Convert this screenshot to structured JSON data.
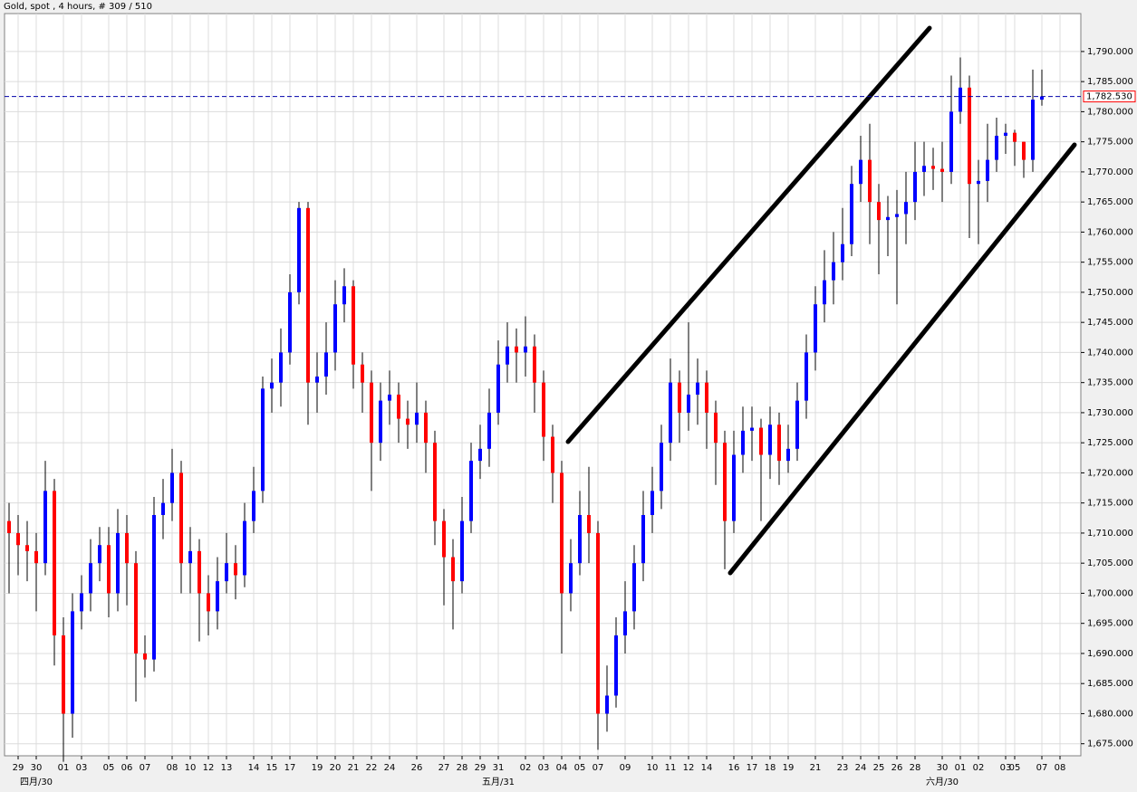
{
  "chart_data": {
    "type": "candlestick",
    "title": "Gold, spot , 4 hours, # 309 / 510",
    "up_color": "#0000ff",
    "down_color": "#ff0000",
    "wick_color": "#000000",
    "grid": true,
    "categories": [
      null,
      "29",
      null,
      "30",
      null,
      null,
      "01",
      null,
      "03",
      null,
      null,
      "05",
      null,
      "06",
      null,
      "07",
      null,
      null,
      "08",
      null,
      "10",
      null,
      "12",
      null,
      "13",
      null,
      null,
      "14",
      null,
      "15",
      null,
      "17",
      null,
      null,
      "19",
      null,
      "20",
      null,
      "21",
      null,
      "22",
      null,
      "24",
      null,
      null,
      "26",
      null,
      null,
      "27",
      null,
      "28",
      null,
      "29",
      null,
      "31",
      null,
      null,
      "02",
      null,
      "03",
      null,
      "04",
      null,
      "05",
      null,
      "07",
      null,
      null,
      "09",
      null,
      null,
      "10",
      null,
      "11",
      null,
      "12",
      null,
      "14",
      null,
      null,
      "16",
      null,
      "17",
      null,
      "18",
      null,
      "19",
      null,
      null,
      "21",
      null,
      null,
      "23",
      null,
      "24",
      null,
      "25",
      null,
      "26",
      null,
      "28",
      null,
      null,
      "30",
      null,
      "01",
      null,
      "02",
      null,
      null,
      "03",
      "05",
      null,
      null,
      "07",
      null,
      "08"
    ],
    "month_labels": [
      {
        "label": "四月/30",
        "index": 3
      },
      {
        "label": "五月/31",
        "index": 54
      },
      {
        "label": "六月/30",
        "index": 103
      }
    ],
    "open": [
      1712,
      1710,
      1708,
      1707,
      1705,
      1717,
      1693,
      1680,
      1697,
      1700,
      1705,
      1708,
      1700,
      1710,
      1705,
      1690,
      1689,
      1713,
      1715,
      1720,
      1705,
      1707,
      1700,
      1697,
      1702,
      1705,
      1703,
      1712,
      1717,
      1734,
      1735,
      1740,
      1750,
      1764,
      1735,
      1736,
      1740,
      1748,
      1751,
      1738,
      1735,
      1725,
      1732,
      1733,
      1729,
      1728,
      1730,
      1725,
      1712,
      1706,
      1702,
      1712,
      1722,
      1724,
      1730,
      1738,
      1741,
      1740,
      1741,
      1735,
      1726,
      1720,
      1700,
      1705,
      1713,
      1710,
      1680,
      1683,
      1693,
      1697,
      1705,
      1713,
      1717,
      1725,
      1735,
      1730,
      1733,
      1735,
      1730,
      1725,
      1712,
      1723,
      1727,
      1727.5,
      1723,
      1728,
      1722,
      1724,
      1732,
      1740,
      1748,
      1752,
      1755,
      1758,
      1768,
      1772,
      1765,
      1762,
      1762.5,
      1763,
      1765,
      1770,
      1771,
      1770.5,
      1770,
      1780,
      1784,
      1768,
      1768.5,
      1772,
      1776,
      1776.5,
      1775,
      1772,
      1782,
      null,
      null
    ],
    "high": [
      1715,
      1713,
      1712,
      1710,
      1722,
      1719,
      1696,
      1700,
      1703,
      1709,
      1711,
      1711,
      1714,
      1713,
      1707,
      1693,
      1716,
      1719,
      1724,
      1722,
      1711,
      1709,
      1703,
      1706,
      1710,
      1708,
      1715,
      1721,
      1736,
      1739,
      1744,
      1753,
      1765,
      1765,
      1740,
      1745,
      1752,
      1754,
      1752,
      1740,
      1737,
      1735,
      1737,
      1735,
      1732,
      1735,
      1732,
      1727,
      1714,
      1709,
      1716,
      1725,
      1728,
      1734,
      1742,
      1745,
      1744,
      1746,
      1743,
      1737,
      1728,
      1722,
      1709,
      1717,
      1721,
      1712,
      1688,
      1696,
      1702,
      1708,
      1717,
      1721,
      1728,
      1739,
      1737,
      1745,
      1739,
      1737,
      1732,
      1727,
      1727,
      1731,
      1731,
      1729,
      1731,
      1730,
      1728,
      1735,
      1743,
      1751,
      1757,
      1760,
      1764,
      1771,
      1776,
      1778,
      1768,
      1766,
      1767,
      1770,
      1775,
      1775,
      1774,
      1775,
      1786,
      1789,
      1786,
      1772,
      1778,
      1779,
      1778,
      1777,
      1775,
      1787,
      1787,
      null,
      null
    ],
    "low": [
      1700,
      1703,
      1702,
      1697,
      1703,
      1688,
      1672,
      1676,
      1694,
      1697,
      1702,
      1696,
      1697,
      1698,
      1682,
      1686,
      1687,
      1709,
      1712,
      1700,
      1700,
      1692,
      1693,
      1694,
      1700,
      1699,
      1701,
      1710,
      1715,
      1730,
      1731,
      1738,
      1748,
      1728,
      1730,
      1733,
      1737,
      1745,
      1734,
      1730,
      1717,
      1722,
      1728,
      1725,
      1724,
      1725,
      1720,
      1708,
      1698,
      1694,
      1700,
      1710,
      1719,
      1721,
      1728,
      1735,
      1735,
      1736,
      1730,
      1722,
      1715,
      1690,
      1697,
      1703,
      1705,
      1674,
      1677,
      1681,
      1690,
      1694,
      1702,
      1710,
      1714,
      1722,
      1725,
      1727,
      1728,
      1724,
      1718,
      1704,
      1710,
      1720,
      1722,
      1712,
      1719,
      1718,
      1720,
      1722,
      1729,
      1737,
      1745,
      1748,
      1752,
      1756,
      1765,
      1758,
      1753,
      1756,
      1748,
      1758,
      1762,
      1766,
      1767,
      1765,
      1768,
      1778,
      1759,
      1758,
      1765,
      1770,
      1773,
      1771,
      1769,
      1770,
      1781,
      null,
      null
    ],
    "close": [
      1710,
      1708,
      1707,
      1705,
      1717,
      1693,
      1680,
      1697,
      1700,
      1705,
      1708,
      1700,
      1710,
      1705,
      1690,
      1689,
      1713,
      1715,
      1720,
      1705,
      1707,
      1700,
      1697,
      1702,
      1705,
      1703,
      1712,
      1717,
      1734,
      1735,
      1740,
      1750,
      1764,
      1735,
      1736,
      1740,
      1748,
      1751,
      1738,
      1735,
      1725,
      1732,
      1733,
      1729,
      1728,
      1730,
      1725,
      1712,
      1706,
      1702,
      1712,
      1722,
      1724,
      1730,
      1738,
      1741,
      1740,
      1741,
      1735,
      1726,
      1720,
      1700,
      1705,
      1713,
      1710,
      1680,
      1683,
      1693,
      1697,
      1705,
      1713,
      1717,
      1725,
      1735,
      1730,
      1733,
      1735,
      1730,
      1725,
      1712,
      1723,
      1727,
      1727.5,
      1723,
      1728,
      1722,
      1724,
      1732,
      1740,
      1748,
      1752,
      1755,
      1758,
      1768,
      1772,
      1765,
      1762,
      1762.5,
      1763,
      1765,
      1770,
      1771,
      1770.5,
      1770,
      1780,
      1784,
      1768,
      1768.5,
      1772,
      1776,
      1776.5,
      1775,
      1772,
      1782,
      1782.53,
      null,
      null
    ],
    "price_line": {
      "value": 1782.53,
      "label": "1,782.530",
      "color": "#0000aa",
      "border": "#ff0000"
    },
    "ylim": [
      1673,
      1796.3
    ],
    "yticks": [
      {
        "value": 1675,
        "label": "1,675.000"
      },
      {
        "value": 1680,
        "label": "1,680.000"
      },
      {
        "value": 1685,
        "label": "1,685.000"
      },
      {
        "value": 1690,
        "label": "1,690.000"
      },
      {
        "value": 1695,
        "label": "1,695.000"
      },
      {
        "value": 1700,
        "label": "1,700.000"
      },
      {
        "value": 1705,
        "label": "1,705.000"
      },
      {
        "value": 1710,
        "label": "1,710.000"
      },
      {
        "value": 1715,
        "label": "1,715.000"
      },
      {
        "value": 1720,
        "label": "1,720.000"
      },
      {
        "value": 1725,
        "label": "1,725.000"
      },
      {
        "value": 1730,
        "label": "1,730.000"
      },
      {
        "value": 1735,
        "label": "1,735.000"
      },
      {
        "value": 1740,
        "label": "1,740.000"
      },
      {
        "value": 1745,
        "label": "1,745.000"
      },
      {
        "value": 1750,
        "label": "1,750.000"
      },
      {
        "value": 1755,
        "label": "1,755.000"
      },
      {
        "value": 1760,
        "label": "1,760.000"
      },
      {
        "value": 1765,
        "label": "1,765.000"
      },
      {
        "value": 1770,
        "label": "1,770.000"
      },
      {
        "value": 1775,
        "label": "1,775.000"
      },
      {
        "value": 1780,
        "label": "1,780.000"
      },
      {
        "value": 1785,
        "label": "1,785.000"
      },
      {
        "value": 1790,
        "label": "1,790.000"
      }
    ]
  }
}
